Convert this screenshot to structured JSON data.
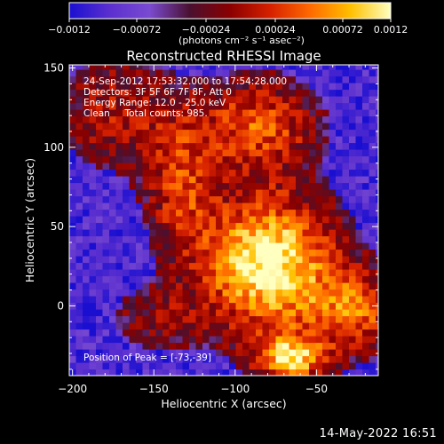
{
  "colorbar": {
    "ticks": [
      "-0.0012",
      "-0.00072",
      "-0.00024",
      "0.00024",
      "0.00072",
      "0.0012"
    ],
    "unit_label": "(photons cm⁻² s⁻¹ asec⁻²)",
    "stops": [
      "#1a0fd0",
      "#5b2fcf",
      "#7a4bd0",
      "#4a1030",
      "#8a0000",
      "#d62000",
      "#ff6a00",
      "#ffc000",
      "#ffffc0"
    ]
  },
  "chart_data": {
    "type": "heatmap",
    "title": "Reconstructed RHESSI Image",
    "xlabel": "Heliocentric X (arcsec)",
    "ylabel": "Heliocentric Y (arcsec)",
    "xlim": [
      -202,
      -12
    ],
    "ylim": [
      -44,
      152
    ],
    "x_ticks": [
      -200,
      -150,
      -100,
      -50
    ],
    "y_ticks": [
      0,
      50,
      100,
      150
    ],
    "x_tick_labels": [
      "−200",
      "−150",
      "−100",
      "−50"
    ],
    "y_tick_labels": [
      "0",
      "50",
      "100",
      "150"
    ],
    "grid": false,
    "peak": [
      -73,
      -39
    ],
    "blobs": [
      {
        "x": -82,
        "y": 25,
        "sx": 28,
        "sy": 30,
        "amp": 1.0
      },
      {
        "x": -68,
        "y": -35,
        "sx": 15,
        "sy": 10,
        "amp": 0.8
      },
      {
        "x": -28,
        "y": -5,
        "sx": 20,
        "sy": 18,
        "amp": 0.55
      },
      {
        "x": -88,
        "y": 112,
        "sx": 25,
        "sy": 20,
        "amp": 0.55
      },
      {
        "x": -135,
        "y": 75,
        "sx": 15,
        "sy": 30,
        "amp": 0.45
      },
      {
        "x": -175,
        "y": 120,
        "sx": 25,
        "sy": 25,
        "amp": 0.35
      },
      {
        "x": -150,
        "y": -10,
        "sx": 20,
        "sy": 15,
        "amp": 0.25
      }
    ]
  },
  "annotations": {
    "time_range": "24-Sep-2012 17:53:32.000 to 17:54:28.000",
    "detectors": "Detectors: 3F 5F 6F 7F 8F, Att 0",
    "energy": "Energy Range: 12.0 - 25.0 keV",
    "clean": "Clean     Total counts: 985.",
    "peak": "Position of Peak = [-73,-39]"
  },
  "footer": {
    "timestamp": "14-May-2022 16:51"
  }
}
